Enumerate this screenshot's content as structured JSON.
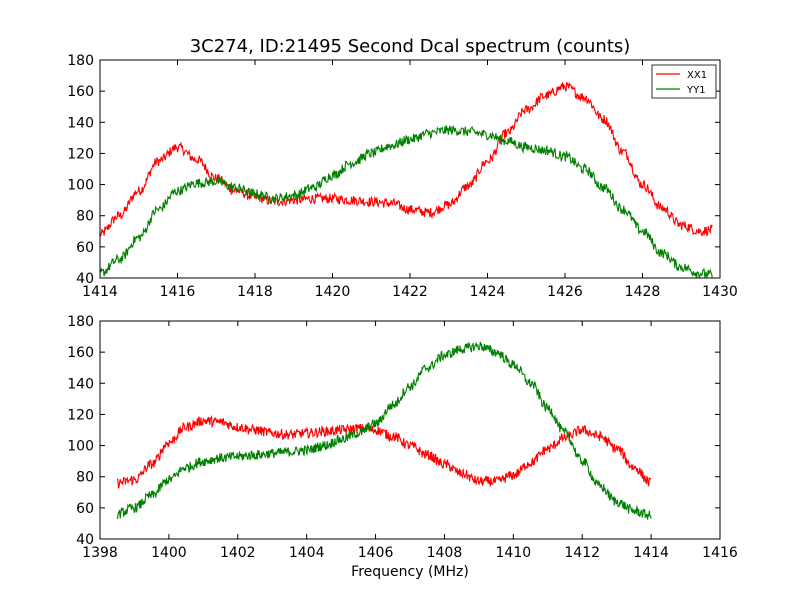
{
  "title": "3C274, ID:21495 Second Dcal spectrum (counts)",
  "chart_data": [
    {
      "type": "line",
      "xlim": [
        1414,
        1430
      ],
      "ylim": [
        40,
        180
      ],
      "x_ticks": [
        "1414",
        "1416",
        "1418",
        "1420",
        "1422",
        "1424",
        "1426",
        "1428",
        "1430"
      ],
      "y_ticks": [
        "40",
        "60",
        "80",
        "100",
        "120",
        "140",
        "160",
        "180"
      ],
      "xlabel": "",
      "legend": {
        "placement": "top-right",
        "entries": [
          "XX1",
          "YY1"
        ]
      },
      "grid": false,
      "series": [
        {
          "name": "XX1",
          "color": "#ff0000",
          "x": [
            1414.0,
            1414.5,
            1415.0,
            1415.5,
            1416.0,
            1416.5,
            1417.0,
            1417.5,
            1418.0,
            1418.5,
            1419.0,
            1419.5,
            1420.0,
            1420.5,
            1421.0,
            1421.5,
            1422.0,
            1422.5,
            1423.0,
            1423.5,
            1424.0,
            1424.5,
            1425.0,
            1425.5,
            1426.0,
            1426.5,
            1427.0,
            1427.5,
            1428.0,
            1428.5,
            1429.0,
            1429.5,
            1429.8
          ],
          "y": [
            68,
            80,
            96,
            115,
            124,
            116,
            104,
            96,
            92,
            89,
            90,
            91,
            91,
            90,
            89,
            88,
            84,
            82,
            87,
            99,
            115,
            133,
            148,
            157,
            163,
            156,
            142,
            121,
            100,
            85,
            74,
            70,
            71
          ]
        },
        {
          "name": "YY1",
          "color": "#008000",
          "x": [
            1414.0,
            1414.5,
            1415.0,
            1415.5,
            1416.0,
            1416.5,
            1417.0,
            1417.5,
            1418.0,
            1418.5,
            1419.0,
            1419.5,
            1420.0,
            1420.5,
            1421.0,
            1421.5,
            1422.0,
            1422.5,
            1423.0,
            1423.5,
            1424.0,
            1424.5,
            1425.0,
            1425.5,
            1426.0,
            1426.5,
            1427.0,
            1427.5,
            1428.0,
            1428.5,
            1429.0,
            1429.5,
            1429.8
          ],
          "y": [
            43,
            52,
            66,
            84,
            96,
            101,
            102,
            98,
            94,
            91,
            93,
            98,
            106,
            114,
            120,
            125,
            129,
            133,
            135,
            134,
            132,
            128,
            124,
            122,
            118,
            110,
            98,
            84,
            70,
            56,
            47,
            43,
            42
          ]
        }
      ]
    },
    {
      "type": "line",
      "xlim": [
        1398,
        1416
      ],
      "ylim": [
        40,
        180
      ],
      "x_ticks": [
        "1398",
        "1400",
        "1402",
        "1404",
        "1406",
        "1408",
        "1410",
        "1412",
        "1414",
        "1416"
      ],
      "y_ticks": [
        "40",
        "60",
        "80",
        "100",
        "120",
        "140",
        "160",
        "180"
      ],
      "xlabel": "Frequency (MHz)",
      "grid": false,
      "series": [
        {
          "name": "XX1",
          "color": "#ff0000",
          "x": [
            1398.5,
            1399.0,
            1399.5,
            1400.0,
            1400.5,
            1401.0,
            1401.5,
            1402.0,
            1402.5,
            1403.0,
            1403.5,
            1404.0,
            1404.5,
            1405.0,
            1405.5,
            1406.0,
            1406.5,
            1407.0,
            1407.5,
            1408.0,
            1408.5,
            1409.0,
            1409.5,
            1410.0,
            1410.5,
            1411.0,
            1411.5,
            1412.0,
            1412.5,
            1413.0,
            1413.5,
            1414.0
          ],
          "y": [
            76,
            78,
            88,
            102,
            112,
            116,
            115,
            112,
            110,
            108,
            107,
            108,
            109,
            110,
            111,
            110,
            106,
            100,
            94,
            88,
            82,
            77,
            77,
            81,
            89,
            98,
            105,
            110,
            106,
            98,
            86,
            76
          ]
        },
        {
          "name": "YY1",
          "color": "#008000",
          "x": [
            1398.5,
            1399.0,
            1399.5,
            1400.0,
            1400.5,
            1401.0,
            1401.5,
            1402.0,
            1402.5,
            1403.0,
            1403.5,
            1404.0,
            1404.5,
            1405.0,
            1405.5,
            1406.0,
            1406.5,
            1407.0,
            1407.5,
            1408.0,
            1408.5,
            1409.0,
            1409.5,
            1410.0,
            1410.5,
            1411.0,
            1411.5,
            1412.0,
            1412.5,
            1413.0,
            1413.5,
            1414.0
          ],
          "y": [
            56,
            60,
            68,
            78,
            86,
            90,
            92,
            93,
            94,
            95,
            96,
            97,
            100,
            104,
            108,
            114,
            126,
            138,
            150,
            158,
            162,
            164,
            160,
            152,
            140,
            124,
            108,
            90,
            74,
            64,
            58,
            55
          ]
        }
      ]
    }
  ]
}
